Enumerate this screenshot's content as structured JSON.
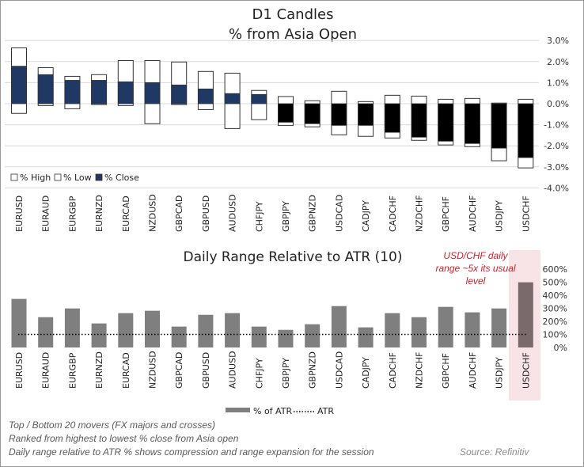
{
  "chart_data": [
    {
      "type": "candle",
      "title": "D1 Candles",
      "subtitle": "% from Asia Open",
      "categories": [
        "EURUSD",
        "EURAUD",
        "EURGBP",
        "EURNZD",
        "EURCAD",
        "NZDUSD",
        "GBPCAD",
        "GBPUSD",
        "AUDUSD",
        "CHFJPY",
        "GBPJPY",
        "GBPNZD",
        "USDCAD",
        "CADJPY",
        "CADCHF",
        "NZDCHF",
        "GBPCHF",
        "AUDCHF",
        "USDJPY",
        "USDCHF"
      ],
      "series": [
        {
          "name": "% High",
          "values": [
            2.65,
            1.71,
            1.3,
            1.38,
            2.05,
            2.05,
            1.98,
            1.53,
            1.45,
            0.63,
            0.34,
            0.14,
            0.59,
            0.1,
            0.4,
            0.36,
            0.21,
            0.25,
            0.03,
            0.21
          ]
        },
        {
          "name": "% Low",
          "values": [
            -0.46,
            -0.09,
            -0.24,
            -0.04,
            -0.09,
            -0.95,
            -0.04,
            -0.28,
            -1.18,
            -0.76,
            -1.03,
            -1.1,
            -1.48,
            -1.55,
            -1.63,
            -1.74,
            -1.96,
            -2.04,
            -2.71,
            -3.05
          ]
        },
        {
          "name": "% Close",
          "values": [
            1.78,
            1.38,
            1.11,
            1.11,
            1.04,
            1.0,
            0.89,
            0.7,
            0.48,
            0.44,
            -0.88,
            -0.95,
            -1.03,
            -1.03,
            -1.36,
            -1.59,
            -1.78,
            -1.89,
            -2.11,
            -2.56
          ]
        }
      ],
      "ylim": [
        -4,
        3
      ],
      "y_ticks": [
        3,
        2,
        1,
        0,
        -1,
        -2,
        -3,
        -4
      ],
      "y_tick_labels": [
        "3.0%",
        "2.0%",
        "1.0%",
        "0.0%",
        "-1.0%",
        "-2.0%",
        "-3.0%",
        "-4.0%"
      ],
      "y_axis_side": "right",
      "grid": true,
      "legend": "bottom-left",
      "colors": {
        "positive_close": "#1f3864",
        "negative_close": "#000000",
        "range_box": "#ffffff"
      }
    },
    {
      "type": "bar",
      "title": "Daily Range Relative to ATR (10)",
      "categories": [
        "EURUSD",
        "EURAUD",
        "EURGBP",
        "EURNZD",
        "EURCAD",
        "NZDUSD",
        "GBPCAD",
        "GBPUSD",
        "AUDUSD",
        "CHFJPY",
        "GBPJPY",
        "GBPNZD",
        "USDCAD",
        "CADJPY",
        "CADCHF",
        "NZDCHF",
        "GBPCHF",
        "AUDCHF",
        "USDJPY",
        "USDCHF"
      ],
      "series": [
        {
          "name": "% of ATR",
          "values": [
            372,
            232,
            299,
            184,
            263,
            281,
            160,
            250,
            263,
            160,
            135,
            178,
            317,
            154,
            263,
            232,
            311,
            269,
            299,
            499
          ]
        },
        {
          "name": "ATR",
          "values": [
            100,
            100,
            100,
            100,
            100,
            100,
            100,
            100,
            100,
            100,
            100,
            100,
            100,
            100,
            100,
            100,
            100,
            100,
            100,
            100
          ]
        }
      ],
      "ylim": [
        0,
        600
      ],
      "y_ticks": [
        600,
        500,
        400,
        300,
        200,
        100,
        0
      ],
      "y_tick_labels": [
        "600%",
        "500%",
        "400%",
        "300%",
        "200%",
        "100%",
        "0%"
      ],
      "y_axis_side": "right",
      "grid": false,
      "legend": "bottom-center",
      "highlight_category": "USDCHF",
      "annotation": "USD/CHF daily range ~5x its usual level",
      "colors": {
        "bar": "#7f7f7f",
        "highlight": "#f8e4e6",
        "annotation": "#d0202a"
      }
    }
  ],
  "legend_top": [
    "% High",
    "% Low",
    "% Close"
  ],
  "legend_bottom": [
    "% of ATR",
    "ATR"
  ],
  "notes": [
    "Top / Bottom 20 movers (FX majors and crosses)",
    "Ranked from highest to lowest % close from Asia open",
    "Daily range relative to ATR % shows compression and range expansion for the session"
  ],
  "source": "Source: Refinitiv"
}
